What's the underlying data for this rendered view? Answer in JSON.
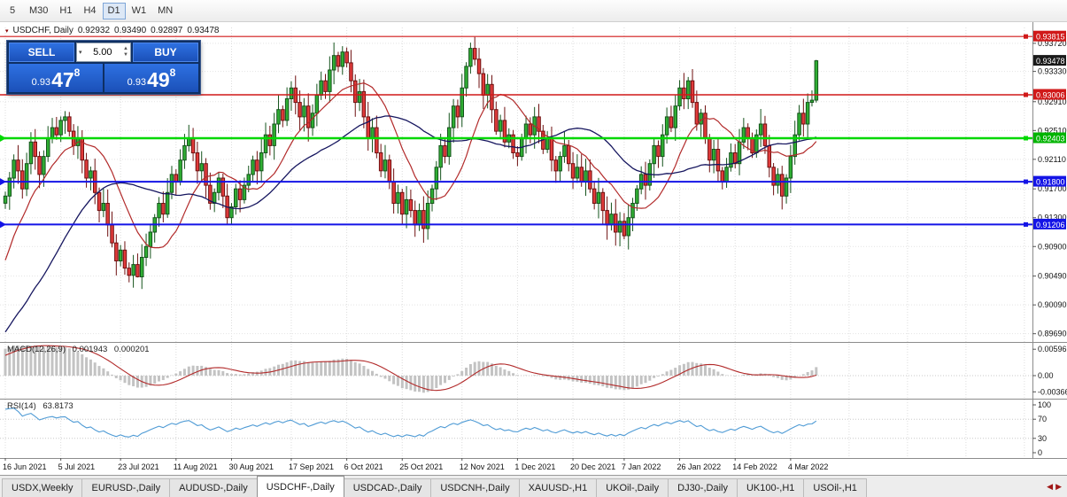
{
  "toolbar": {
    "timeframes": [
      "5",
      "M30",
      "H1",
      "H4",
      "D1",
      "W1",
      "MN"
    ],
    "active": "D1"
  },
  "chart_header": {
    "title": "USDCHF, Daily",
    "open": "0.92932",
    "high": "0.93490",
    "low": "0.92897",
    "close": "0.93478"
  },
  "trade_panel": {
    "sell_label": "SELL",
    "buy_label": "BUY",
    "volume": "5.00",
    "sell_price": {
      "prefix": "0.93",
      "big": "47",
      "sup": "8"
    },
    "buy_price": {
      "prefix": "0.93",
      "big": "49",
      "sup": "8"
    }
  },
  "icons": {
    "header_marker": "▾",
    "dropdown": "▾",
    "spin_up": "▲",
    "spin_down": "▼",
    "tab_scroll_left": "◀",
    "tab_scroll_right": "▶"
  },
  "indicators": {
    "macd": {
      "label": "MACD(12,26,9)",
      "value_main": "0.001943",
      "value_signal": "0.000201",
      "axis": [
        "0.00596",
        "0.00",
        "-0.00366"
      ],
      "fast": 12,
      "slow": 26,
      "signal": 9
    },
    "rsi": {
      "label": "RSI(14)",
      "value": "63.8173",
      "axis": [
        "100",
        "70",
        "30",
        "0"
      ],
      "period": 14,
      "levels": [
        70,
        30
      ]
    }
  },
  "tabs": {
    "items": [
      "USDX,Weekly",
      "EURUSD-,Daily",
      "AUDUSD-,Daily",
      "USDCHF-,Daily",
      "USDCAD-,Daily",
      "USDCNH-,Daily",
      "XAUUSD-,H1",
      "UKOil-,Daily",
      "DJ30-,Daily",
      "UK100-,H1",
      "USOil-,H1"
    ],
    "active": "USDCHF-,Daily"
  },
  "colors": {
    "bull": "#2fae33",
    "bull_stroke": "#14531b",
    "bear": "#e13b3b",
    "bear_stroke": "#6e1010",
    "ma_fast": "#b22a2a",
    "ma_slow": "#16165f",
    "macd_hist": "#c3c3c3",
    "macd_signal": "#b22a2a",
    "rsi": "#4f9bd5",
    "grid": "#dcdcdc",
    "level_red": "#d01919",
    "level_green": "#00d800",
    "level_blue": "#1414e6",
    "badge_close": "#1a1a1a"
  },
  "chart_data": {
    "type": "candlestick",
    "symbol": "USDCHF",
    "timeframe": "Daily",
    "title": "USDCHF, Daily 0.92932 0.93490 0.92897 0.93478",
    "y_range": {
      "min": 0.896,
      "max": 0.9394
    },
    "price_ticks": [
      "0.93720",
      "0.93330",
      "0.92910",
      "0.92510",
      "0.92110",
      "0.91700",
      "0.91300",
      "0.90900",
      "0.90490",
      "0.90090",
      "0.89690"
    ],
    "price_badges": [
      {
        "value": "0.93815",
        "color": "#d01919"
      },
      {
        "value": "0.93478",
        "color": "#1a1a1a"
      },
      {
        "value": "0.93006",
        "color": "#d01919"
      },
      {
        "value": "0.92403",
        "color": "#00b400"
      },
      {
        "value": "0.91800",
        "color": "#1414e6"
      },
      {
        "value": "0.91206",
        "color": "#1414e6"
      }
    ],
    "levels": [
      {
        "price": 0.93815,
        "color": "#d01919",
        "width": 1.2
      },
      {
        "price": 0.93006,
        "color": "#d01919",
        "width": 1.6
      },
      {
        "price": 0.92403,
        "color": "#00d800",
        "width": 2.4
      },
      {
        "price": 0.918,
        "color": "#1414e6",
        "width": 2
      },
      {
        "price": 0.91206,
        "color": "#1414e6",
        "width": 2
      }
    ],
    "x_ticks": [
      {
        "i": 0,
        "label": "16 Jun 2021"
      },
      {
        "i": 13,
        "label": "5 Jul 2021"
      },
      {
        "i": 27,
        "label": "23 Jul 2021"
      },
      {
        "i": 40,
        "label": "11 Aug 2021"
      },
      {
        "i": 53,
        "label": "30 Aug 2021"
      },
      {
        "i": 67,
        "label": "17 Sep 2021"
      },
      {
        "i": 80,
        "label": "6 Oct 2021"
      },
      {
        "i": 93,
        "label": "25 Oct 2021"
      },
      {
        "i": 107,
        "label": "12 Nov 2021"
      },
      {
        "i": 120,
        "label": "1 Dec 2021"
      },
      {
        "i": 133,
        "label": "20 Dec 2021"
      },
      {
        "i": 145,
        "label": "7 Jan 2022"
      },
      {
        "i": 158,
        "label": "26 Jan 2022"
      },
      {
        "i": 171,
        "label": "14 Feb 2022"
      },
      {
        "i": 184,
        "label": "4 Mar 2022"
      }
    ],
    "first_open": 0.915,
    "prehistory": {
      "flat_value": 0.8905,
      "flat_days": 45,
      "ramp_start": 0.893,
      "ramp_end": 0.915,
      "ramp_days": 15
    },
    "closes": [
      0.916,
      0.9185,
      0.921,
      0.9195,
      0.917,
      0.9205,
      0.9235,
      0.9215,
      0.919,
      0.9215,
      0.924,
      0.9255,
      0.9245,
      0.9265,
      0.927,
      0.925,
      0.923,
      0.924,
      0.921,
      0.9185,
      0.9195,
      0.9165,
      0.914,
      0.915,
      0.912,
      0.9095,
      0.907,
      0.9085,
      0.906,
      0.905,
      0.9065,
      0.9048,
      0.9075,
      0.909,
      0.911,
      0.913,
      0.915,
      0.9135,
      0.9165,
      0.919,
      0.918,
      0.921,
      0.923,
      0.924,
      0.922,
      0.9195,
      0.9205,
      0.9175,
      0.915,
      0.9165,
      0.9185,
      0.916,
      0.913,
      0.9145,
      0.917,
      0.9155,
      0.9175,
      0.919,
      0.921,
      0.9195,
      0.922,
      0.9245,
      0.923,
      0.926,
      0.928,
      0.9265,
      0.9295,
      0.931,
      0.929,
      0.927,
      0.9285,
      0.9255,
      0.9275,
      0.93,
      0.932,
      0.9305,
      0.9335,
      0.9355,
      0.934,
      0.936,
      0.9345,
      0.932,
      0.929,
      0.9305,
      0.927,
      0.924,
      0.9255,
      0.922,
      0.9195,
      0.921,
      0.918,
      0.915,
      0.9165,
      0.9135,
      0.9155,
      0.914,
      0.912,
      0.914,
      0.9115,
      0.915,
      0.917,
      0.92,
      0.923,
      0.9215,
      0.9255,
      0.9285,
      0.927,
      0.931,
      0.934,
      0.9365,
      0.935,
      0.933,
      0.93,
      0.9315,
      0.928,
      0.925,
      0.9265,
      0.9235,
      0.9245,
      0.922,
      0.9215,
      0.924,
      0.926,
      0.9245,
      0.927,
      0.925,
      0.9225,
      0.924,
      0.921,
      0.9195,
      0.9215,
      0.923,
      0.9205,
      0.9185,
      0.92,
      0.918,
      0.9195,
      0.917,
      0.915,
      0.9165,
      0.914,
      0.912,
      0.9135,
      0.911,
      0.9125,
      0.9105,
      0.913,
      0.915,
      0.917,
      0.919,
      0.9175,
      0.9205,
      0.923,
      0.9215,
      0.9245,
      0.927,
      0.9255,
      0.9285,
      0.931,
      0.9295,
      0.932,
      0.929,
      0.926,
      0.9275,
      0.924,
      0.921,
      0.9225,
      0.9195,
      0.918,
      0.92,
      0.922,
      0.9205,
      0.9235,
      0.9255,
      0.924,
      0.922,
      0.9245,
      0.926,
      0.923,
      0.92,
      0.9175,
      0.919,
      0.916,
      0.9185,
      0.9215,
      0.9245,
      0.9275,
      0.926,
      0.929,
      0.9293,
      0.93478
    ],
    "wick_overrides": [
      {
        "i": 14,
        "high": 0.9278
      },
      {
        "i": 31,
        "low": 0.9047
      },
      {
        "i": 79,
        "high": 0.9368
      },
      {
        "i": 109,
        "high": 0.9373
      },
      {
        "i": 145,
        "low": 0.91
      }
    ],
    "last_candle": {
      "open": 0.92932,
      "high": 0.9349,
      "low": 0.92897,
      "close": 0.93478
    },
    "moving_averages": [
      {
        "type": "sma",
        "period": 13,
        "color": "#b22a2a"
      },
      {
        "type": "sma",
        "period": 34,
        "color": "#16165f"
      }
    ]
  }
}
